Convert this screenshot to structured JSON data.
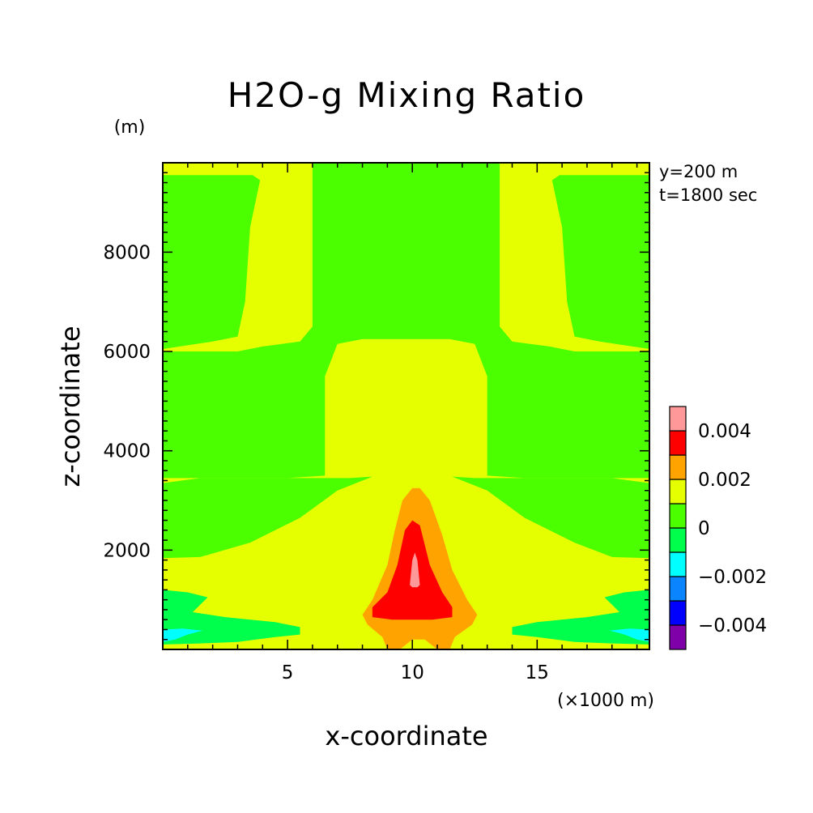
{
  "chart_data": {
    "type": "heatmap",
    "title": "H2O-g Mixing Ratio",
    "xlabel": "x-coordinate",
    "ylabel": "z-coordinate",
    "x_unit": "(×1000 m)",
    "y_unit": "(m)",
    "xlim": [
      0,
      19.5
    ],
    "ylim": [
      0,
      9800
    ],
    "x_ticks": [
      5,
      10,
      15
    ],
    "y_ticks": [
      2000,
      4000,
      6000,
      8000
    ],
    "annotations": [
      "y=200 m",
      "t=1800 sec"
    ],
    "colorbar": {
      "levels": [
        -0.005,
        -0.004,
        -0.003,
        -0.002,
        -0.001,
        0,
        0.001,
        0.002,
        0.003,
        0.004,
        0.005
      ],
      "colors": [
        "#7f00a8",
        "#0000ff",
        "#0a84ff",
        "#00ffff",
        "#00ff4c",
        "#4cff00",
        "#e6ff00",
        "#ffa300",
        "#ff0000",
        "#ff9999"
      ],
      "labels": [
        {
          "value": -0.004,
          "text": "−0.004"
        },
        {
          "value": -0.002,
          "text": "−0.002"
        },
        {
          "value": 0,
          "text": "0"
        },
        {
          "value": 0.002,
          "text": "0.002"
        },
        {
          "value": 0.004,
          "text": "0.004"
        }
      ]
    },
    "background_level": 0,
    "regions": [
      {
        "level": 0.001,
        "points": [
          [
            0,
            0
          ],
          [
            0,
            1840
          ],
          [
            1.5,
            1860
          ],
          [
            3.5,
            2150
          ],
          [
            5.5,
            2650
          ],
          [
            7,
            3200
          ],
          [
            8.5,
            3500
          ],
          [
            9.9,
            3550
          ],
          [
            10.3,
            3550
          ],
          [
            11.5,
            3500
          ],
          [
            13,
            3200
          ],
          [
            14.5,
            2650
          ],
          [
            16.5,
            2150
          ],
          [
            18,
            1860
          ],
          [
            19.5,
            1840
          ],
          [
            19.5,
            0
          ]
        ]
      },
      {
        "level": 0.001,
        "points": [
          [
            0,
            3350
          ],
          [
            1.5,
            3450
          ],
          [
            2.5,
            3450
          ],
          [
            4,
            3450
          ],
          [
            6,
            3450
          ],
          [
            7.5,
            3450
          ],
          [
            9,
            3500
          ],
          [
            11,
            3500
          ],
          [
            12.5,
            3450
          ],
          [
            14.5,
            3450
          ],
          [
            16.5,
            3450
          ],
          [
            18,
            3450
          ],
          [
            19.5,
            3350
          ],
          [
            19.5,
            6050
          ],
          [
            17.5,
            6200
          ],
          [
            16.5,
            6300
          ],
          [
            16.2,
            7000
          ],
          [
            16,
            8500
          ],
          [
            15.6,
            9450
          ],
          [
            15.9,
            9550
          ],
          [
            19.5,
            9550
          ],
          [
            19.5,
            9800
          ],
          [
            0,
            9800
          ],
          [
            0,
            9550
          ],
          [
            3.6,
            9550
          ],
          [
            3.9,
            9450
          ],
          [
            3.5,
            8500
          ],
          [
            3.3,
            7000
          ],
          [
            3,
            6300
          ],
          [
            2,
            6200
          ],
          [
            0,
            6050
          ]
        ]
      },
      {
        "level": 0.0,
        "points": [
          [
            6,
            9800
          ],
          [
            6,
            9450
          ],
          [
            6,
            8500
          ],
          [
            6,
            7200
          ],
          [
            6,
            6500
          ],
          [
            5.5,
            6200
          ],
          [
            4,
            6100
          ],
          [
            3,
            6000
          ],
          [
            0,
            6000
          ],
          [
            0,
            3450
          ],
          [
            5,
            3450
          ],
          [
            6.5,
            3500
          ],
          [
            6.5,
            5500
          ],
          [
            7,
            6150
          ],
          [
            8,
            6250
          ],
          [
            11.5,
            6250
          ],
          [
            12.5,
            6150
          ],
          [
            13,
            5500
          ],
          [
            13,
            3500
          ],
          [
            14.5,
            3450
          ],
          [
            19.5,
            3450
          ],
          [
            19.5,
            6000
          ],
          [
            16.5,
            6000
          ],
          [
            15.5,
            6100
          ],
          [
            14,
            6200
          ],
          [
            13.5,
            6500
          ],
          [
            13.5,
            7200
          ],
          [
            13.5,
            8500
          ],
          [
            13.5,
            9450
          ],
          [
            13.5,
            9800
          ]
        ]
      },
      {
        "level": 0.002,
        "points": [
          [
            9,
            0
          ],
          [
            8.8,
            250
          ],
          [
            8.2,
            500
          ],
          [
            8,
            700
          ],
          [
            8.4,
            1000
          ],
          [
            9,
            1700
          ],
          [
            9.3,
            2400
          ],
          [
            9.6,
            3000
          ],
          [
            10,
            3250
          ],
          [
            10.3,
            3250
          ],
          [
            10.7,
            3000
          ],
          [
            11.2,
            2300
          ],
          [
            11.6,
            1600
          ],
          [
            12.2,
            1000
          ],
          [
            12.6,
            700
          ],
          [
            12.4,
            500
          ],
          [
            11.7,
            250
          ],
          [
            11.5,
            0
          ],
          [
            11,
            0
          ],
          [
            10.5,
            200
          ],
          [
            10,
            200
          ],
          [
            9.5,
            0
          ]
        ]
      },
      {
        "level": 0.003,
        "points": [
          [
            8.4,
            650
          ],
          [
            8.4,
            850
          ],
          [
            9,
            1150
          ],
          [
            9.4,
            1700
          ],
          [
            9.7,
            2400
          ],
          [
            10,
            2600
          ],
          [
            10.3,
            2500
          ],
          [
            10.7,
            1700
          ],
          [
            11.2,
            1150
          ],
          [
            11.6,
            850
          ],
          [
            11.6,
            650
          ],
          [
            10.8,
            600
          ],
          [
            10,
            600
          ],
          [
            9.2,
            600
          ]
        ]
      },
      {
        "level": 0.004,
        "points": [
          [
            9.9,
            1300
          ],
          [
            10,
            1800
          ],
          [
            10.1,
            1950
          ],
          [
            10.2,
            1800
          ],
          [
            10.3,
            1300
          ],
          [
            10.2,
            1250
          ],
          [
            10,
            1250
          ]
        ]
      },
      {
        "level": -0.001,
        "points": [
          [
            0,
            100
          ],
          [
            0,
            1200
          ],
          [
            1,
            1150
          ],
          [
            1.8,
            1050
          ],
          [
            1.5,
            900
          ],
          [
            1.2,
            750
          ],
          [
            2.5,
            650
          ],
          [
            4.5,
            550
          ],
          [
            5.5,
            450
          ],
          [
            5.5,
            300
          ],
          [
            4.5,
            250
          ],
          [
            3,
            150
          ],
          [
            1.5,
            120
          ]
        ]
      },
      {
        "level": -0.001,
        "points": [
          [
            19.5,
            100
          ],
          [
            19.5,
            1200
          ],
          [
            18.5,
            1150
          ],
          [
            17.7,
            1050
          ],
          [
            18,
            900
          ],
          [
            18.3,
            750
          ],
          [
            17,
            650
          ],
          [
            15,
            550
          ],
          [
            14,
            450
          ],
          [
            14,
            300
          ],
          [
            15,
            250
          ],
          [
            16.5,
            150
          ],
          [
            18,
            120
          ]
        ]
      },
      {
        "level": -0.002,
        "points": [
          [
            0,
            150
          ],
          [
            0,
            400
          ],
          [
            0.8,
            420
          ],
          [
            1.6,
            380
          ],
          [
            1,
            300
          ],
          [
            0.5,
            200
          ]
        ]
      },
      {
        "level": -0.002,
        "points": [
          [
            19.5,
            150
          ],
          [
            19.5,
            400
          ],
          [
            18.7,
            420
          ],
          [
            17.9,
            380
          ],
          [
            18.5,
            300
          ],
          [
            19,
            200
          ]
        ]
      }
    ]
  }
}
